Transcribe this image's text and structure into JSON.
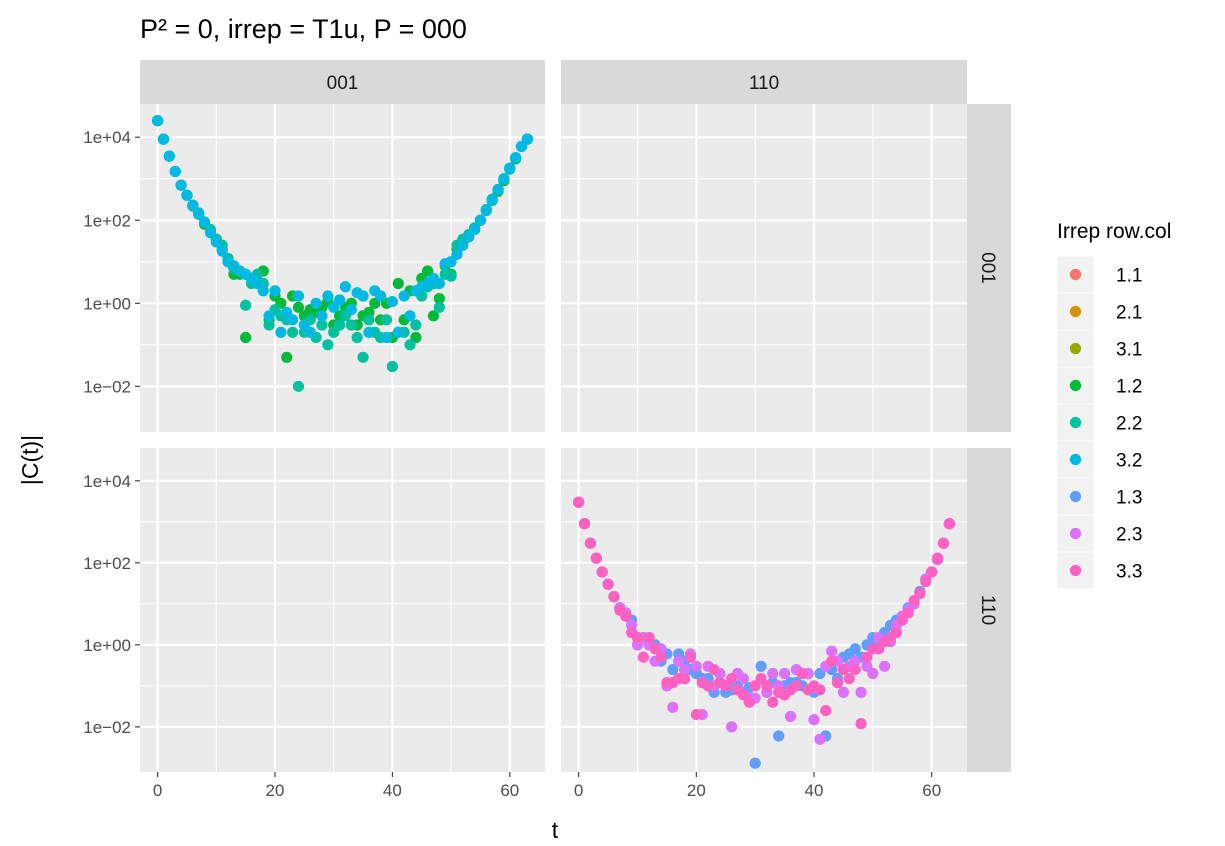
{
  "chart_data": {
    "type": "scatter",
    "title": "P² = 0, irrep = T1u, P = 000",
    "xlabel": "t",
    "ylabel": "|C(t)|",
    "xlim": [
      -3,
      66
    ],
    "ylim_log10": [
      -3.1,
      4.8
    ],
    "y_scale": "log10",
    "x_ticks": [
      0,
      20,
      40,
      60
    ],
    "x_tick_labels": [
      "0",
      "20",
      "40",
      "60"
    ],
    "y_ticks": [
      0.01,
      1,
      100,
      10000
    ],
    "y_tick_labels": [
      "1e−02",
      "1e+00",
      "1e+02",
      "1e+04"
    ],
    "grid": true,
    "legend_position": "right",
    "facet_cols": [
      "001",
      "110"
    ],
    "facet_rows": [
      "001",
      "110"
    ],
    "legend": {
      "title": "Irrep row.col",
      "entries": [
        {
          "label": "1.1",
          "color": "#F8766D"
        },
        {
          "label": "2.1",
          "color": "#D39200"
        },
        {
          "label": "3.1",
          "color": "#93AA00"
        },
        {
          "label": "1.2",
          "color": "#00BA38"
        },
        {
          "label": "2.2",
          "color": "#00C19F"
        },
        {
          "label": "3.2",
          "color": "#00B9E3"
        },
        {
          "label": "1.3",
          "color": "#619CFF"
        },
        {
          "label": "2.3",
          "color": "#DB72FB"
        },
        {
          "label": "3.3",
          "color": "#FF61C3"
        }
      ]
    },
    "panels": [
      {
        "row": "001",
        "col": "001",
        "series": [
          {
            "name": "1.2",
            "color": "#00BA38",
            "x": [
              0,
              1,
              2,
              3,
              4,
              5,
              6,
              7,
              8,
              9,
              10,
              11,
              12,
              13,
              14,
              15,
              16,
              17,
              18,
              19,
              20,
              21,
              22,
              23,
              24,
              25,
              26,
              27,
              28,
              29,
              30,
              31,
              32,
              33,
              34,
              35,
              36,
              37,
              38,
              39,
              40,
              41,
              42,
              43,
              44,
              45,
              46,
              47,
              48,
              49,
              50,
              51,
              52,
              53,
              54,
              55,
              56,
              57,
              58,
              59,
              60,
              61,
              62,
              63
            ],
            "y": [
              25000,
              9000,
              3500,
              1500,
              700,
              400,
              220,
              140,
              80,
              55,
              35,
              20,
              10,
              5,
              5,
              0.15,
              4,
              3,
              6,
              0.4,
              1.5,
              1,
              0.05,
              1.5,
              0.8,
              0.5,
              0.7,
              0.6,
              0.8,
              1.1,
              0.3,
              0.5,
              0.8,
              1,
              0.3,
              0.5,
              0.6,
              1,
              0.4,
              1,
              0.15,
              3,
              0.4,
              2,
              0.15,
              4,
              6,
              0.5,
              1.3,
              8,
              5,
              20,
              30,
              40,
              60,
              100,
              180,
              300,
              500,
              900,
              1800,
              3000,
              6000,
              9000
            ]
          },
          {
            "name": "2.2",
            "color": "#00C19F",
            "x": [
              0,
              1,
              2,
              3,
              4,
              5,
              6,
              7,
              8,
              9,
              10,
              11,
              12,
              13,
              14,
              15,
              16,
              17,
              18,
              19,
              20,
              21,
              22,
              23,
              24,
              25,
              26,
              27,
              28,
              29,
              30,
              31,
              32,
              33,
              34,
              35,
              36,
              37,
              38,
              39,
              40,
              41,
              42,
              43,
              44,
              45,
              46,
              47,
              48,
              49,
              50,
              51,
              52,
              53,
              54,
              55,
              56,
              57,
              58,
              59,
              60,
              61,
              62,
              63
            ],
            "y": [
              25000,
              9000,
              3500,
              1500,
              700,
              400,
              230,
              150,
              90,
              60,
              35,
              25,
              12,
              7,
              6,
              0.9,
              3,
              5,
              3,
              0.3,
              0.7,
              0.5,
              0.4,
              0.2,
              0.01,
              0.2,
              0.4,
              0.15,
              0.3,
              0.1,
              0.2,
              0.3,
              0.5,
              0.3,
              0.15,
              0.05,
              0.4,
              0.2,
              0.15,
              0.4,
              0.03,
              0.2,
              0.2,
              0.1,
              0.3,
              1.5,
              2.5,
              3,
              0.8,
              5,
              4.5,
              25,
              35,
              45,
              65,
              100,
              170,
              320,
              550,
              1000,
              1700,
              3200,
              6000,
              9000
            ]
          },
          {
            "name": "3.2",
            "color": "#00B9E3",
            "x": [
              0,
              1,
              2,
              3,
              4,
              5,
              6,
              7,
              8,
              9,
              10,
              11,
              12,
              13,
              14,
              15,
              16,
              17,
              18,
              19,
              20,
              21,
              22,
              23,
              24,
              25,
              26,
              27,
              28,
              29,
              30,
              31,
              32,
              33,
              34,
              35,
              36,
              37,
              38,
              39,
              40,
              41,
              42,
              43,
              44,
              45,
              46,
              47,
              48,
              49,
              50,
              51,
              52,
              53,
              54,
              55,
              56,
              57,
              58,
              59,
              60,
              61,
              62,
              63
            ],
            "y": [
              25000,
              9000,
              3500,
              1500,
              700,
              400,
              230,
              140,
              90,
              50,
              30,
              18,
              10,
              8,
              6,
              5,
              4,
              3,
              2,
              0.5,
              2,
              0.2,
              0.6,
              0.4,
              1.5,
              0.3,
              0.2,
              1,
              0.5,
              1.5,
              0.8,
              1.2,
              2.5,
              0.7,
              1.8,
              1.5,
              0.2,
              2,
              1.5,
              0.15,
              1.1,
              0.2,
              1.5,
              0.5,
              2,
              2.5,
              3,
              4,
              3,
              9,
              10,
              15,
              25,
              40,
              60,
              100,
              180,
              300,
              550,
              1000,
              1800,
              3200,
              6000,
              9000
            ]
          }
        ]
      },
      {
        "row": "001",
        "col": "110",
        "series": []
      },
      {
        "row": "110",
        "col": "001",
        "series": []
      },
      {
        "row": "110",
        "col": "110",
        "series": [
          {
            "name": "1.3",
            "color": "#619CFF",
            "x": [
              0,
              1,
              2,
              3,
              4,
              5,
              6,
              7,
              8,
              9,
              10,
              11,
              12,
              13,
              14,
              15,
              16,
              17,
              18,
              19,
              20,
              21,
              22,
              23,
              24,
              25,
              26,
              27,
              28,
              29,
              30,
              31,
              32,
              33,
              34,
              35,
              36,
              37,
              38,
              39,
              40,
              41,
              42,
              43,
              44,
              45,
              46,
              47,
              48,
              49,
              50,
              51,
              52,
              53,
              54,
              55,
              56,
              57,
              58,
              59,
              60,
              61,
              62,
              63
            ],
            "y": [
              3000,
              900,
              300,
              130,
              60,
              30,
              15,
              8,
              6,
              4,
              1.5,
              1.5,
              1,
              1,
              0.4,
              0.6,
              0.25,
              0.6,
              0.4,
              0.25,
              0.2,
              0.15,
              0.15,
              0.07,
              0.12,
              0.07,
              0.08,
              0.1,
              0.07,
              0.09,
              0.0013,
              0.3,
              0.07,
              0.12,
              0.006,
              0.1,
              0.12,
              0.12,
              0.1,
              0.2,
              0.07,
              0.2,
              0.006,
              0.25,
              0.15,
              0.5,
              0.6,
              0.8,
              0.5,
              1,
              1.5,
              1,
              2,
              3,
              4,
              5,
              8,
              10,
              20,
              40,
              60,
              120,
              300,
              900
            ]
          },
          {
            "name": "2.3",
            "color": "#DB72FB",
            "x": [
              0,
              1,
              2,
              3,
              4,
              5,
              6,
              7,
              8,
              9,
              10,
              11,
              12,
              13,
              14,
              15,
              16,
              17,
              18,
              19,
              20,
              21,
              22,
              23,
              24,
              25,
              26,
              27,
              28,
              29,
              30,
              31,
              32,
              33,
              34,
              35,
              36,
              37,
              38,
              39,
              40,
              41,
              42,
              43,
              44,
              45,
              46,
              47,
              48,
              49,
              50,
              51,
              52,
              53,
              54,
              55,
              56,
              57,
              58,
              59,
              60,
              61,
              62,
              63
            ],
            "y": [
              3000,
              900,
              300,
              130,
              60,
              30,
              15,
              8,
              6,
              3,
              1,
              1.5,
              1,
              0.4,
              0.8,
              0.1,
              0.03,
              0.4,
              0.25,
              0.6,
              0.3,
              0.02,
              0.3,
              0.1,
              0.2,
              0.1,
              0.01,
              0.2,
              0.15,
              0.05,
              0.05,
              0.15,
              0.07,
              0.2,
              0.1,
              0.2,
              0.018,
              0.25,
              0.2,
              0.2,
              0.015,
              0.005,
              0.3,
              0.7,
              0.4,
              0.07,
              0.3,
              0.4,
              0.07,
              0.3,
              0.2,
              1.5,
              0.3,
              1.2,
              3,
              5,
              7,
              10,
              18,
              40,
              60,
              120,
              300,
              900
            ]
          },
          {
            "name": "3.3",
            "color": "#FF61C3",
            "x": [
              0,
              1,
              2,
              3,
              4,
              5,
              6,
              7,
              8,
              9,
              10,
              11,
              12,
              13,
              14,
              15,
              16,
              17,
              18,
              19,
              20,
              21,
              22,
              23,
              24,
              25,
              26,
              27,
              28,
              29,
              30,
              31,
              32,
              33,
              34,
              35,
              36,
              37,
              38,
              39,
              40,
              41,
              42,
              43,
              44,
              45,
              46,
              47,
              48,
              49,
              50,
              51,
              52,
              53,
              54,
              55,
              56,
              57,
              58,
              59,
              60,
              61,
              62,
              63
            ],
            "y": [
              3000,
              900,
              300,
              130,
              60,
              30,
              15,
              7,
              5,
              2,
              1.5,
              0.5,
              1.5,
              0.8,
              0.5,
              0.12,
              0.12,
              0.15,
              0.15,
              0.5,
              0.02,
              0.12,
              0.1,
              0.25,
              0.12,
              0.1,
              0.15,
              0.08,
              0.06,
              0.04,
              0.1,
              0.15,
              0.1,
              0.04,
              0.07,
              0.06,
              0.08,
              0.1,
              0.2,
              0.08,
              0.1,
              0.08,
              0.025,
              0.4,
              0.12,
              0.25,
              0.15,
              0.25,
              0.012,
              0.5,
              0.8,
              0.8,
              1.2,
              1.5,
              2,
              4,
              6,
              12,
              18,
              35,
              60,
              130,
              300,
              900
            ]
          }
        ]
      }
    ]
  }
}
